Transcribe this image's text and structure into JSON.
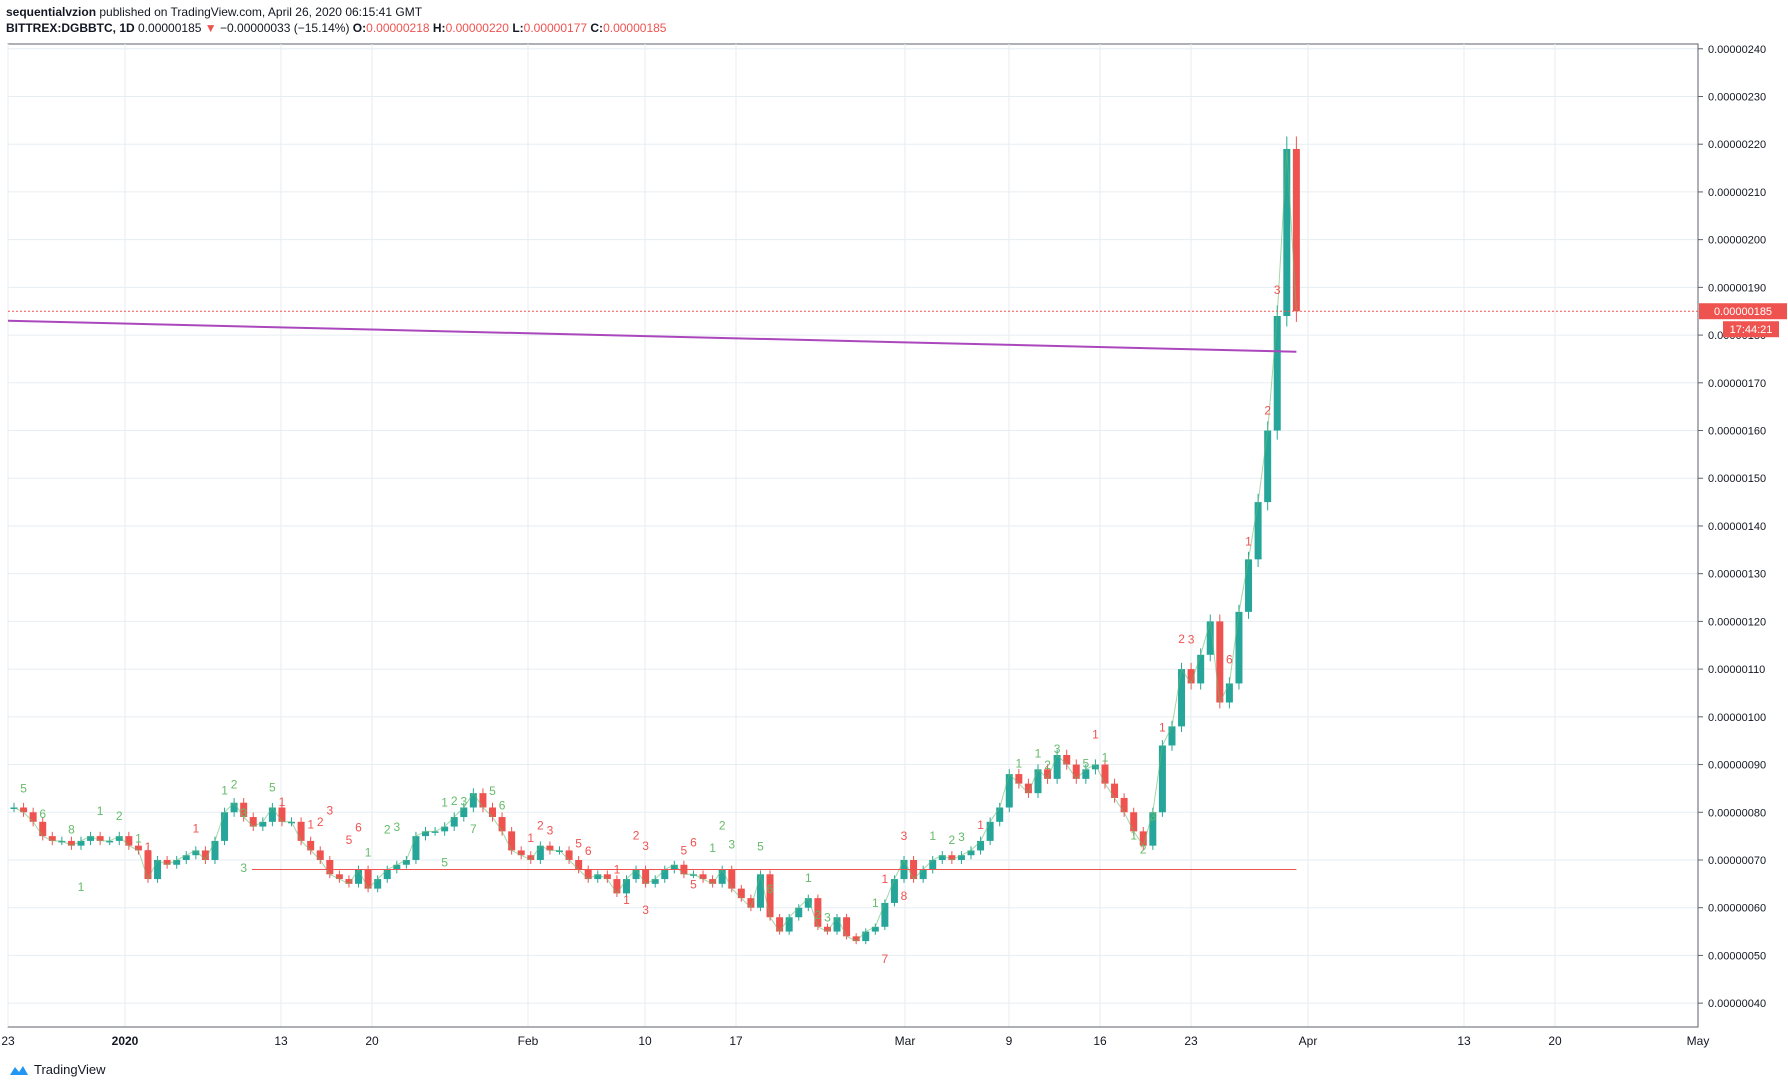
{
  "header": {
    "author": "sequentialvzion",
    "published": "published on TradingView.com, April 26, 2020 06:15:41 GMT",
    "symbol": "BITTREX:DGBBTC, 1D",
    "last": "0.00000185",
    "change": "−0.00000033 (−15.14%)",
    "o_label": "O:",
    "o": "0.00000218",
    "h_label": "H:",
    "h": "0.00000220",
    "l_label": "L:",
    "l": "0.00000177",
    "c_label": "C:",
    "c": "0.00000185"
  },
  "footer": {
    "brand": "TradingView",
    "icon": "tradingview-logo-icon"
  },
  "colors": {
    "up": "#26a69a",
    "down": "#ef5350",
    "ma": "#ab47bc",
    "grid": "#e6eef2",
    "signal_green": "#66bb6a",
    "signal_red": "#ef5350"
  },
  "chart_data": {
    "type": "candlestick",
    "y_range": [
      3.5e-07,
      2.41e-06
    ],
    "y_ticks": [
      "0.00000040",
      "0.00000050",
      "0.00000060",
      "0.00000070",
      "0.00000080",
      "0.00000090",
      "0.00000100",
      "0.00000110",
      "0.00000120",
      "0.00000130",
      "0.00000140",
      "0.00000150",
      "0.00000160",
      "0.00000170",
      "0.00000180",
      "0.00000190",
      "0.00000200",
      "0.00000210",
      "0.00000220",
      "0.00000230",
      "0.00000240"
    ],
    "y_tick_values": [
      4e-07,
      5e-07,
      6e-07,
      7e-07,
      8e-07,
      9e-07,
      1e-06,
      1.1e-06,
      1.2e-06,
      1.3e-06,
      1.4e-06,
      1.5e-06,
      1.6e-06,
      1.7e-06,
      1.8e-06,
      1.9e-06,
      2e-06,
      2.1e-06,
      2.2e-06,
      2.3e-06,
      2.4e-06
    ],
    "x_ticks": [
      {
        "label": "23",
        "date": "2019-12-23"
      },
      {
        "label": "2020",
        "date": "2020-01-01"
      },
      {
        "label": "13",
        "date": "2020-01-13"
      },
      {
        "label": "20",
        "date": "2020-01-20"
      },
      {
        "label": "Feb",
        "date": "2020-02-01"
      },
      {
        "label": "10",
        "date": "2020-02-10"
      },
      {
        "label": "17",
        "date": "2020-02-17"
      },
      {
        "label": "Mar",
        "date": "2020-03-01"
      },
      {
        "label": "9",
        "date": "2020-03-09"
      },
      {
        "label": "16",
        "date": "2020-03-16"
      },
      {
        "label": "23",
        "date": "2020-03-23"
      },
      {
        "label": "Apr",
        "date": "2020-04-01"
      },
      {
        "label": "13",
        "date": "2020-04-13"
      },
      {
        "label": "20",
        "date": "2020-04-20"
      },
      {
        "label": "May",
        "date": "2020-05-01"
      }
    ],
    "x_range": [
      "2019-12-23",
      "2020-05-01"
    ],
    "price_label": "0.00000185",
    "countdown_label": "17:44:21",
    "ma_line": {
      "start": 1.83e-06,
      "end": 1.765e-06
    },
    "support_line": 6.8e-07,
    "closes": [
      81,
      80,
      78,
      75,
      74,
      74,
      73,
      74,
      75,
      74,
      74,
      75,
      73,
      72,
      66,
      70,
      69,
      70,
      71,
      72,
      70,
      74,
      80,
      82,
      79,
      77,
      78,
      81,
      78,
      78,
      74,
      72,
      70,
      67,
      66,
      65,
      68,
      64,
      66,
      68,
      69,
      70,
      75,
      76,
      76,
      77,
      79,
      81,
      84,
      81,
      79,
      76,
      72,
      71,
      70,
      73,
      72,
      72,
      70,
      68,
      66,
      67,
      66,
      63,
      66,
      68,
      65,
      66,
      68,
      69,
      67,
      67,
      66,
      65,
      68,
      64,
      62,
      60,
      67,
      58,
      55,
      58,
      60,
      62,
      56,
      55,
      58,
      54,
      53,
      55,
      56,
      61,
      66,
      70,
      66,
      68,
      70,
      71,
      70,
      71,
      72,
      74,
      78,
      81,
      88,
      86,
      84,
      89,
      87,
      92,
      90,
      87,
      89,
      90,
      86,
      83,
      80,
      76,
      73,
      80,
      94,
      98,
      110,
      107,
      113,
      120,
      103,
      107,
      122,
      133,
      145,
      160,
      184,
      219,
      185
    ],
    "series": [],
    "annotations": {
      "signals": [
        {
          "i": 1,
          "t": "5",
          "c": "g",
          "dy": -20
        },
        {
          "i": 3,
          "t": "6",
          "c": "g",
          "dy": -18
        },
        {
          "i": 6,
          "t": "8",
          "c": "g",
          "dy": -12
        },
        {
          "i": 9,
          "t": "1",
          "c": "g",
          "dy": -26
        },
        {
          "i": 11,
          "t": "2",
          "c": "g",
          "dy": -16
        },
        {
          "i": 13,
          "t": "1",
          "c": "g",
          "dy": -8
        },
        {
          "i": 7,
          "t": "1",
          "c": "g",
          "dy": 50
        },
        {
          "i": 14,
          "t": "1",
          "c": "r",
          "dy": -28
        },
        {
          "i": 19,
          "t": "1",
          "c": "r",
          "dy": -18
        },
        {
          "i": 22,
          "t": "1",
          "c": "g",
          "dy": -18
        },
        {
          "i": 23,
          "t": "2",
          "c": "g",
          "dy": -14
        },
        {
          "i": 24,
          "t": "3",
          "c": "g",
          "dy": 0
        },
        {
          "i": 24,
          "t": "3",
          "c": "g",
          "dy": 55
        },
        {
          "i": 27,
          "t": "5",
          "c": "g",
          "dy": -16
        },
        {
          "i": 28,
          "t": "1",
          "c": "r",
          "dy": -16
        },
        {
          "i": 31,
          "t": "1",
          "c": "r",
          "dy": -22
        },
        {
          "i": 32,
          "t": "2",
          "c": "r",
          "dy": -34
        },
        {
          "i": 33,
          "t": "3",
          "c": "r",
          "dy": -60
        },
        {
          "i": 35,
          "t": "5",
          "c": "r",
          "dy": -40
        },
        {
          "i": 36,
          "t": "6",
          "c": "r",
          "dy": -38
        },
        {
          "i": 37,
          "t": "1",
          "c": "g",
          "dy": -32
        },
        {
          "i": 39,
          "t": "2",
          "c": "g",
          "dy": -36
        },
        {
          "i": 40,
          "t": "3",
          "c": "g",
          "dy": -34
        },
        {
          "i": 45,
          "t": "1",
          "c": "g",
          "dy": -20
        },
        {
          "i": 46,
          "t": "2",
          "c": "g",
          "dy": -12
        },
        {
          "i": 47,
          "t": "3",
          "c": "g",
          "dy": -2
        },
        {
          "i": 45,
          "t": "5",
          "c": "g",
          "dy": 40
        },
        {
          "i": 48,
          "t": "7",
          "c": "g",
          "dy": 40
        },
        {
          "i": 50,
          "t": "5",
          "c": "g",
          "dy": -22
        },
        {
          "i": 51,
          "t": "6",
          "c": "g",
          "dy": -22
        },
        {
          "i": 54,
          "t": "1",
          "c": "r",
          "dy": -18
        },
        {
          "i": 55,
          "t": "2",
          "c": "r",
          "dy": -16
        },
        {
          "i": 56,
          "t": "3",
          "c": "r",
          "dy": -16
        },
        {
          "i": 59,
          "t": "5",
          "c": "r",
          "dy": -22
        },
        {
          "i": 60,
          "t": "6",
          "c": "r",
          "dy": -24
        },
        {
          "i": 63,
          "t": "1",
          "c": "r",
          "dy": -20
        },
        {
          "i": 64,
          "t": "1",
          "c": "r",
          "dy": 25
        },
        {
          "i": 65,
          "t": "2",
          "c": "r",
          "dy": -30
        },
        {
          "i": 66,
          "t": "3",
          "c": "r",
          "dy": -34
        },
        {
          "i": 66,
          "t": "3",
          "c": "r",
          "dy": 30
        },
        {
          "i": 70,
          "t": "5",
          "c": "r",
          "dy": -20
        },
        {
          "i": 71,
          "t": "6",
          "c": "r",
          "dy": -28
        },
        {
          "i": 71,
          "t": "5",
          "c": "r",
          "dy": 14
        },
        {
          "i": 73,
          "t": "1",
          "c": "g",
          "dy": -32
        },
        {
          "i": 74,
          "t": "2",
          "c": "g",
          "dy": -40
        },
        {
          "i": 75,
          "t": "3",
          "c": "g",
          "dy": -40
        },
        {
          "i": 78,
          "t": "5",
          "c": "g",
          "dy": -24
        },
        {
          "i": 79,
          "t": "6",
          "c": "g",
          "dy": -24
        },
        {
          "i": 83,
          "t": "1",
          "c": "g",
          "dy": -16
        },
        {
          "i": 84,
          "t": "2",
          "c": "g",
          "dy": -8
        },
        {
          "i": 85,
          "t": "3",
          "c": "g",
          "dy": -10
        },
        {
          "i": 90,
          "t": "1",
          "c": "g",
          "dy": -20
        },
        {
          "i": 91,
          "t": "1",
          "c": "r",
          "dy": -20
        },
        {
          "i": 93,
          "t": "3",
          "c": "r",
          "dy": -20
        },
        {
          "i": 91,
          "t": "7",
          "c": "r",
          "dy": 60
        },
        {
          "i": 93,
          "t": "8",
          "c": "r",
          "dy": 40
        },
        {
          "i": 96,
          "t": "1",
          "c": "g",
          "dy": -20
        },
        {
          "i": 98,
          "t": "2",
          "c": "g",
          "dy": -16
        },
        {
          "i": 99,
          "t": "3",
          "c": "g",
          "dy": -14
        },
        {
          "i": 101,
          "t": "1",
          "c": "r",
          "dy": -12
        },
        {
          "i": 105,
          "t": "1",
          "c": "g",
          "dy": -16
        },
        {
          "i": 107,
          "t": "1",
          "c": "g",
          "dy": -12
        },
        {
          "i": 108,
          "t": "2",
          "c": "g",
          "dy": -10
        },
        {
          "i": 109,
          "t": "3",
          "c": "g",
          "dy": -2
        },
        {
          "i": 112,
          "t": "5",
          "c": "g",
          "dy": -2
        },
        {
          "i": 113,
          "t": "1",
          "c": "r",
          "dy": -26
        },
        {
          "i": 114,
          "t": "1",
          "c": "g",
          "dy": -22
        },
        {
          "i": 115,
          "t": "1",
          "c": "r",
          "dy": -4
        },
        {
          "i": 117,
          "t": "1",
          "c": "g",
          "dy": 8
        },
        {
          "i": 118,
          "t": "2",
          "c": "g",
          "dy": 8
        },
        {
          "i": 119,
          "t": "3",
          "c": "g",
          "dy": 8
        },
        {
          "i": 120,
          "t": "1",
          "c": "r",
          "dy": -14
        },
        {
          "i": 122,
          "t": "2",
          "c": "r",
          "dy": -26
        },
        {
          "i": 123,
          "t": "3",
          "c": "r",
          "dy": -40
        },
        {
          "i": 126,
          "t": "5",
          "c": "r",
          "dy": -30
        },
        {
          "i": 127,
          "t": "6",
          "c": "r",
          "dy": -20
        },
        {
          "i": 129,
          "t": "1",
          "c": "r",
          "dy": -14
        },
        {
          "i": 131,
          "t": "2",
          "c": "r",
          "dy": -16
        },
        {
          "i": 132,
          "t": "3",
          "c": "r",
          "dy": -22
        },
        {
          "i": 135,
          "t": "5",
          "c": "r",
          "dy": -48
        },
        {
          "i": 136,
          "t": "6",
          "c": "r",
          "dy": -44
        }
      ]
    }
  }
}
